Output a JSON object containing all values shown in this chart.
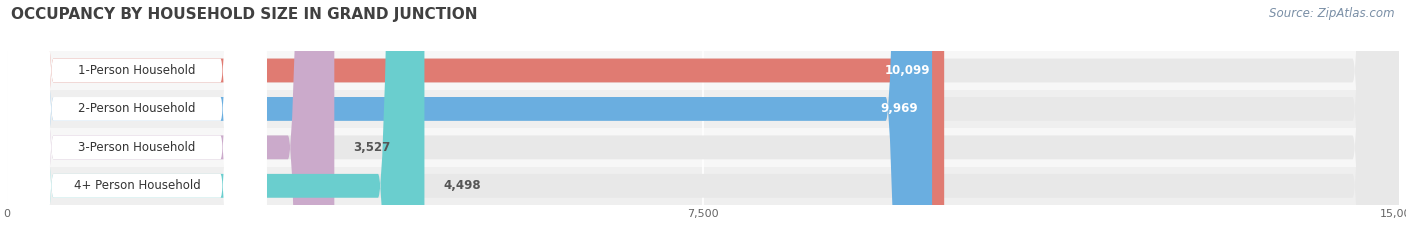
{
  "title": "OCCUPANCY BY HOUSEHOLD SIZE IN GRAND JUNCTION",
  "source": "Source: ZipAtlas.com",
  "categories": [
    "1-Person Household",
    "2-Person Household",
    "3-Person Household",
    "4+ Person Household"
  ],
  "values": [
    10099,
    9969,
    3527,
    4498
  ],
  "bar_colors": [
    "#e07b72",
    "#6aaee0",
    "#cbaacb",
    "#6acece"
  ],
  "xlim": [
    0,
    15000
  ],
  "xticks": [
    0,
    7500,
    15000
  ],
  "background_color": "#ffffff",
  "bar_bg_color": "#e8e8e8",
  "row_bg_color": "#f0f0f0",
  "title_color": "#404040",
  "source_color": "#7a8fa6",
  "title_fontsize": 11,
  "source_fontsize": 8.5,
  "bar_height": 0.62,
  "value_fontsize": 8.5,
  "label_fontsize": 8.5,
  "value_threshold": 7500
}
